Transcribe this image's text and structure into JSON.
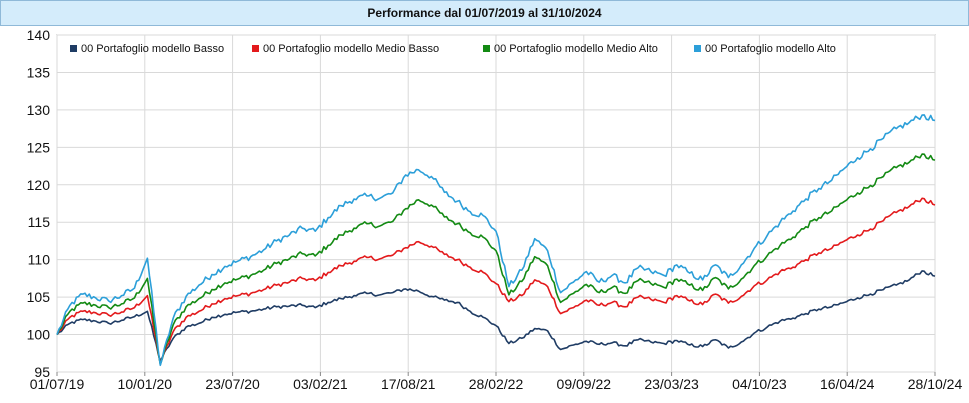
{
  "chart_data": {
    "type": "line",
    "title": "Performance dal 01/07/2019 al 31/10/2024",
    "xlabel": "",
    "ylabel": "",
    "ylim": [
      95,
      140
    ],
    "yticks": [
      95,
      100,
      105,
      110,
      115,
      120,
      125,
      130,
      135,
      140
    ],
    "xticks": [
      "01/07/19",
      "10/01/20",
      "23/07/20",
      "03/02/21",
      "17/08/21",
      "28/02/22",
      "09/09/22",
      "23/03/23",
      "04/10/23",
      "16/04/24",
      "28/10/24"
    ],
    "grid": true,
    "legend_position": "top-left",
    "series": [
      {
        "name": "00 Portafoglio modello Basso",
        "color": "#1f3c64",
        "values": [
          100.0,
          101.5,
          102.0,
          101.8,
          101.5,
          101.9,
          102.4,
          103.1,
          96.5,
          99.5,
          101.0,
          101.5,
          102.3,
          102.7,
          103.0,
          103.1,
          103.4,
          103.7,
          103.8,
          103.9,
          103.6,
          104.3,
          104.8,
          105.2,
          105.5,
          105.3,
          105.6,
          106.1,
          105.8,
          105.1,
          104.6,
          104.3,
          103.1,
          102.3,
          101.2,
          98.8,
          99.5,
          100.8,
          100.5,
          98.0,
          98.6,
          99.1,
          98.7,
          98.9,
          98.5,
          99.3,
          99.0,
          98.8,
          99.2,
          98.6,
          98.4,
          99.3,
          98.2,
          99.0,
          100.2,
          101.0,
          101.8,
          102.2,
          102.8,
          103.4,
          103.7,
          104.3,
          104.9,
          105.4,
          106.0,
          106.6,
          107.3,
          108.5,
          107.8
        ]
      },
      {
        "name": "00 Portafoglio modello Medio Basso",
        "color": "#e31a1c",
        "values": [
          100.0,
          102.3,
          103.1,
          102.9,
          102.6,
          103.0,
          103.6,
          105.2,
          96.2,
          100.4,
          102.3,
          103.1,
          104.1,
          104.8,
          105.2,
          105.5,
          106.0,
          106.6,
          107.0,
          107.5,
          107.2,
          108.3,
          109.2,
          109.8,
          110.3,
          110.1,
          110.6,
          111.6,
          112.4,
          111.8,
          110.7,
          110.0,
          109.0,
          108.3,
          106.8,
          104.4,
          105.2,
          107.3,
          106.4,
          102.8,
          103.6,
          104.6,
          103.9,
          104.3,
          103.7,
          105.0,
          104.7,
          104.3,
          105.2,
          104.5,
          104.0,
          105.4,
          104.2,
          105.1,
          106.5,
          107.3,
          108.4,
          109.0,
          110.0,
          110.9,
          111.5,
          112.5,
          113.3,
          114.1,
          115.2,
          116.3,
          117.1,
          118.2,
          117.3
        ]
      },
      {
        "name": "00 Portafoglio modello Medio Alto",
        "color": "#138a13",
        "values": [
          100.0,
          103.1,
          104.2,
          103.9,
          103.6,
          104.1,
          104.9,
          107.5,
          96.0,
          101.3,
          103.7,
          104.8,
          106.0,
          106.9,
          107.4,
          107.9,
          108.6,
          109.5,
          110.1,
          110.8,
          110.5,
          111.9,
          113.3,
          114.2,
          114.8,
          114.5,
          115.1,
          116.8,
          118.0,
          117.3,
          115.7,
          114.8,
          113.6,
          113.0,
          111.2,
          105.3,
          107.1,
          110.4,
          109.2,
          104.3,
          105.5,
          106.7,
          105.6,
          106.3,
          105.5,
          107.2,
          106.8,
          106.3,
          107.4,
          106.6,
          105.9,
          107.6,
          106.1,
          107.4,
          109.2,
          110.5,
          111.9,
          113.0,
          114.4,
          115.6,
          116.5,
          117.8,
          118.9,
          119.9,
          121.1,
          122.3,
          123.0,
          124.1,
          123.3
        ]
      },
      {
        "name": "00 Portafoglio modello Alto",
        "color": "#2c9fd9",
        "values": [
          100.0,
          103.9,
          105.4,
          104.9,
          104.5,
          105.2,
          106.2,
          110.2,
          95.9,
          102.2,
          105.1,
          106.6,
          108.0,
          109.1,
          109.8,
          110.4,
          111.3,
          112.5,
          113.3,
          114.2,
          113.8,
          115.6,
          117.2,
          118.1,
          118.5,
          118.2,
          118.9,
          121.3,
          122.0,
          121.1,
          119.0,
          117.8,
          116.4,
          115.9,
          113.8,
          106.4,
          108.6,
          112.8,
          111.2,
          105.6,
          107.0,
          108.4,
          107.0,
          107.9,
          106.9,
          108.9,
          108.4,
          107.9,
          109.3,
          108.2,
          107.3,
          109.3,
          107.6,
          109.3,
          111.5,
          113.2,
          115.0,
          116.5,
          118.1,
          119.5,
          120.6,
          122.2,
          123.6,
          124.8,
          126.2,
          127.5,
          128.3,
          129.3,
          128.6
        ]
      }
    ]
  }
}
